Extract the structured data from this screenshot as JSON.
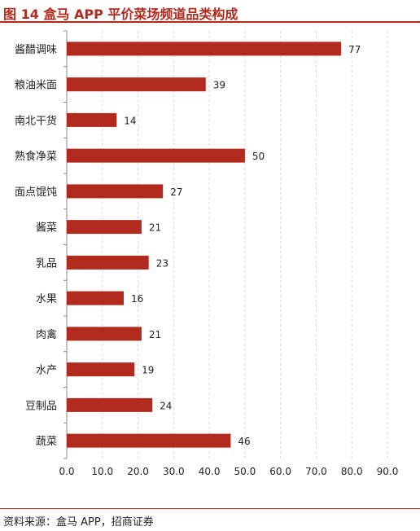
{
  "header": {
    "title": "图 14 盒马 APP 平价菜场频道品类构成"
  },
  "footer": {
    "source": "资料来源：盒马 APP，招商证券"
  },
  "colors": {
    "bar": "#b22a1e",
    "accent": "#b22a1e",
    "grid": "#d9d9d9"
  },
  "chart_data": {
    "type": "bar",
    "orientation": "horizontal",
    "title": "",
    "xlabel": "",
    "ylabel": "",
    "categories": [
      "酱醋调味",
      "粮油米面",
      "南北干货",
      "熟食净菜",
      "面点馄饨",
      "酱菜",
      "乳品",
      "水果",
      "肉禽",
      "水产",
      "豆制品",
      "蔬菜"
    ],
    "values": [
      77,
      39,
      14,
      50,
      27,
      21,
      23,
      16,
      21,
      19,
      24,
      46
    ],
    "xlim": [
      0,
      90
    ],
    "xticks": [
      "0.0",
      "10.0",
      "20.0",
      "30.0",
      "40.0",
      "50.0",
      "60.0",
      "70.0",
      "80.0",
      "90.0"
    ],
    "grid": "vertical-dashed",
    "legend": "none"
  }
}
